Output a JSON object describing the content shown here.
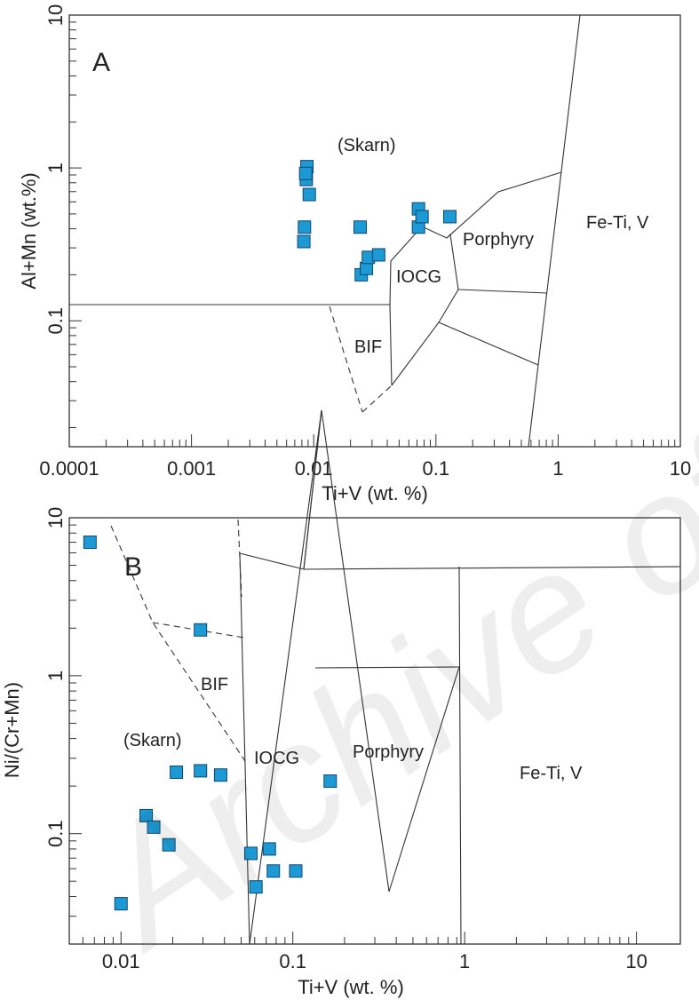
{
  "watermark": "Archive of SID",
  "chart_data": [
    {
      "type": "scatter",
      "panel": "A",
      "xlabel": "Ti+V (wt. %)",
      "ylabel": "Al+Mn (wt.%)",
      "xscale": "log",
      "yscale": "log",
      "xlim": [
        0.0001,
        10
      ],
      "ylim": [
        0.015,
        10
      ],
      "xticks": [
        0.0001,
        0.001,
        0.01,
        0.1,
        1,
        10
      ],
      "xtick_labels": [
        "0.0001",
        "0.001",
        "0.01",
        "0.1",
        "1",
        "10"
      ],
      "yticks": [
        0.1,
        1,
        10
      ],
      "ytick_labels": [
        "0.1",
        "1",
        "10"
      ],
      "marker_color": "#1b9ad6",
      "fields": [
        "(Skarn)",
        "IOCG",
        "Porphyry",
        "Fe-Ti, V",
        "BIF"
      ],
      "points": [
        {
          "x": 0.0088,
          "y": 1.02
        },
        {
          "x": 0.0087,
          "y": 0.84
        },
        {
          "x": 0.0086,
          "y": 0.92
        },
        {
          "x": 0.0092,
          "y": 0.67
        },
        {
          "x": 0.0084,
          "y": 0.41
        },
        {
          "x": 0.0083,
          "y": 0.33
        },
        {
          "x": 0.024,
          "y": 0.41
        },
        {
          "x": 0.0245,
          "y": 0.2
        },
        {
          "x": 0.027,
          "y": 0.22
        },
        {
          "x": 0.028,
          "y": 0.26
        },
        {
          "x": 0.034,
          "y": 0.27
        },
        {
          "x": 0.072,
          "y": 0.54
        },
        {
          "x": 0.072,
          "y": 0.41
        },
        {
          "x": 0.077,
          "y": 0.48
        },
        {
          "x": 0.13,
          "y": 0.48
        }
      ]
    },
    {
      "type": "scatter",
      "panel": "B",
      "xlabel": "Ti+V (wt. %)",
      "ylabel": "Ni/(Cr+Mn)",
      "xscale": "log",
      "yscale": "log",
      "xlim": [
        0.005,
        18
      ],
      "ylim": [
        0.02,
        10
      ],
      "xticks": [
        0.01,
        0.1,
        1,
        10
      ],
      "xtick_labels": [
        "0.01",
        "0.1",
        "1",
        "10"
      ],
      "yticks": [
        0.1,
        1,
        10
      ],
      "ytick_labels": [
        "0.1",
        "1",
        "10"
      ],
      "marker_color": "#1b9ad6",
      "fields": [
        "BIF",
        "(Skarn)",
        "IOCG",
        "Porphyry",
        "Fe-Ti, V"
      ],
      "points": [
        {
          "x": 0.0066,
          "y": 7.0
        },
        {
          "x": 0.029,
          "y": 1.95
        },
        {
          "x": 0.021,
          "y": 0.245
        },
        {
          "x": 0.029,
          "y": 0.25
        },
        {
          "x": 0.038,
          "y": 0.235
        },
        {
          "x": 0.014,
          "y": 0.13
        },
        {
          "x": 0.0155,
          "y": 0.11
        },
        {
          "x": 0.019,
          "y": 0.085
        },
        {
          "x": 0.01,
          "y": 0.036
        },
        {
          "x": 0.057,
          "y": 0.075
        },
        {
          "x": 0.073,
          "y": 0.08
        },
        {
          "x": 0.077,
          "y": 0.058
        },
        {
          "x": 0.104,
          "y": 0.058
        },
        {
          "x": 0.061,
          "y": 0.046
        },
        {
          "x": 0.165,
          "y": 0.215
        }
      ]
    }
  ]
}
